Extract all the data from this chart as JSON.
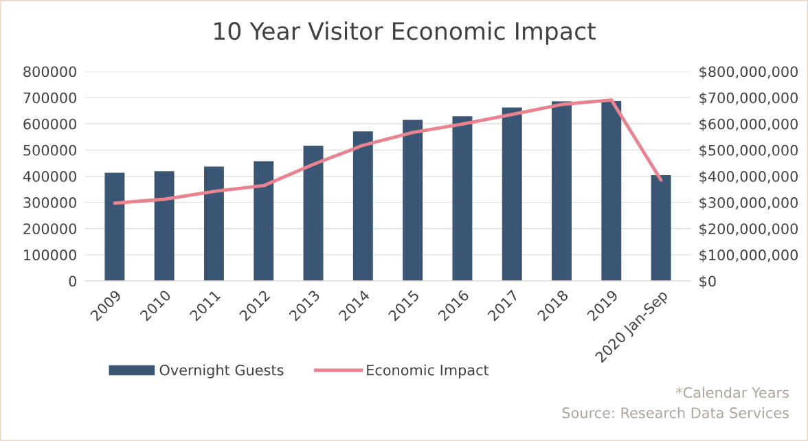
{
  "chart_data": {
    "type": "bar",
    "title": "10 Year Visitor Economic Impact",
    "categories": [
      "2009",
      "2010",
      "2011",
      "2012",
      "2013",
      "2014",
      "2015",
      "2016",
      "2017",
      "2018",
      "2019",
      "2020 Jan-Sep"
    ],
    "series": [
      {
        "name": "Overnight Guests",
        "color": "#3b5675",
        "values": [
          413000,
          419000,
          437000,
          457000,
          516000,
          571000,
          615000,
          629000,
          662000,
          686000,
          687000,
          404000
        ]
      },
      {
        "name": "Economic Impact",
        "type": "line",
        "axis": "y2",
        "color": "#e8838f",
        "values": [
          297000000,
          312000000,
          342000000,
          364000000,
          445000000,
          518000000,
          567000000,
          599000000,
          636000000,
          674000000,
          691000000,
          385000000
        ]
      }
    ],
    "ylim": [
      0,
      800000
    ],
    "yticks": [
      0,
      100000,
      200000,
      300000,
      400000,
      500000,
      600000,
      700000,
      800000
    ],
    "y2lim": [
      0,
      800000000
    ],
    "y2ticks": [
      {
        "value": 0,
        "label": "$0"
      },
      {
        "value": 100000000,
        "label": "$100,000,000"
      },
      {
        "value": 200000000,
        "label": "$200,000,000"
      },
      {
        "value": 300000000,
        "label": "$300,000,000"
      },
      {
        "value": 400000000,
        "label": "$400,000,000"
      },
      {
        "value": 500000000,
        "label": "$500,000,000"
      },
      {
        "value": 600000000,
        "label": "$600,000,000"
      },
      {
        "value": 700000000,
        "label": "$700,000,000"
      },
      {
        "value": 800000000,
        "label": "$800,000,000"
      }
    ],
    "grid": "y",
    "legend": "bottom",
    "marker": "none",
    "line_style": "solid",
    "annotations": [
      "*Calendar Years",
      "Source: Research Data Services"
    ]
  }
}
